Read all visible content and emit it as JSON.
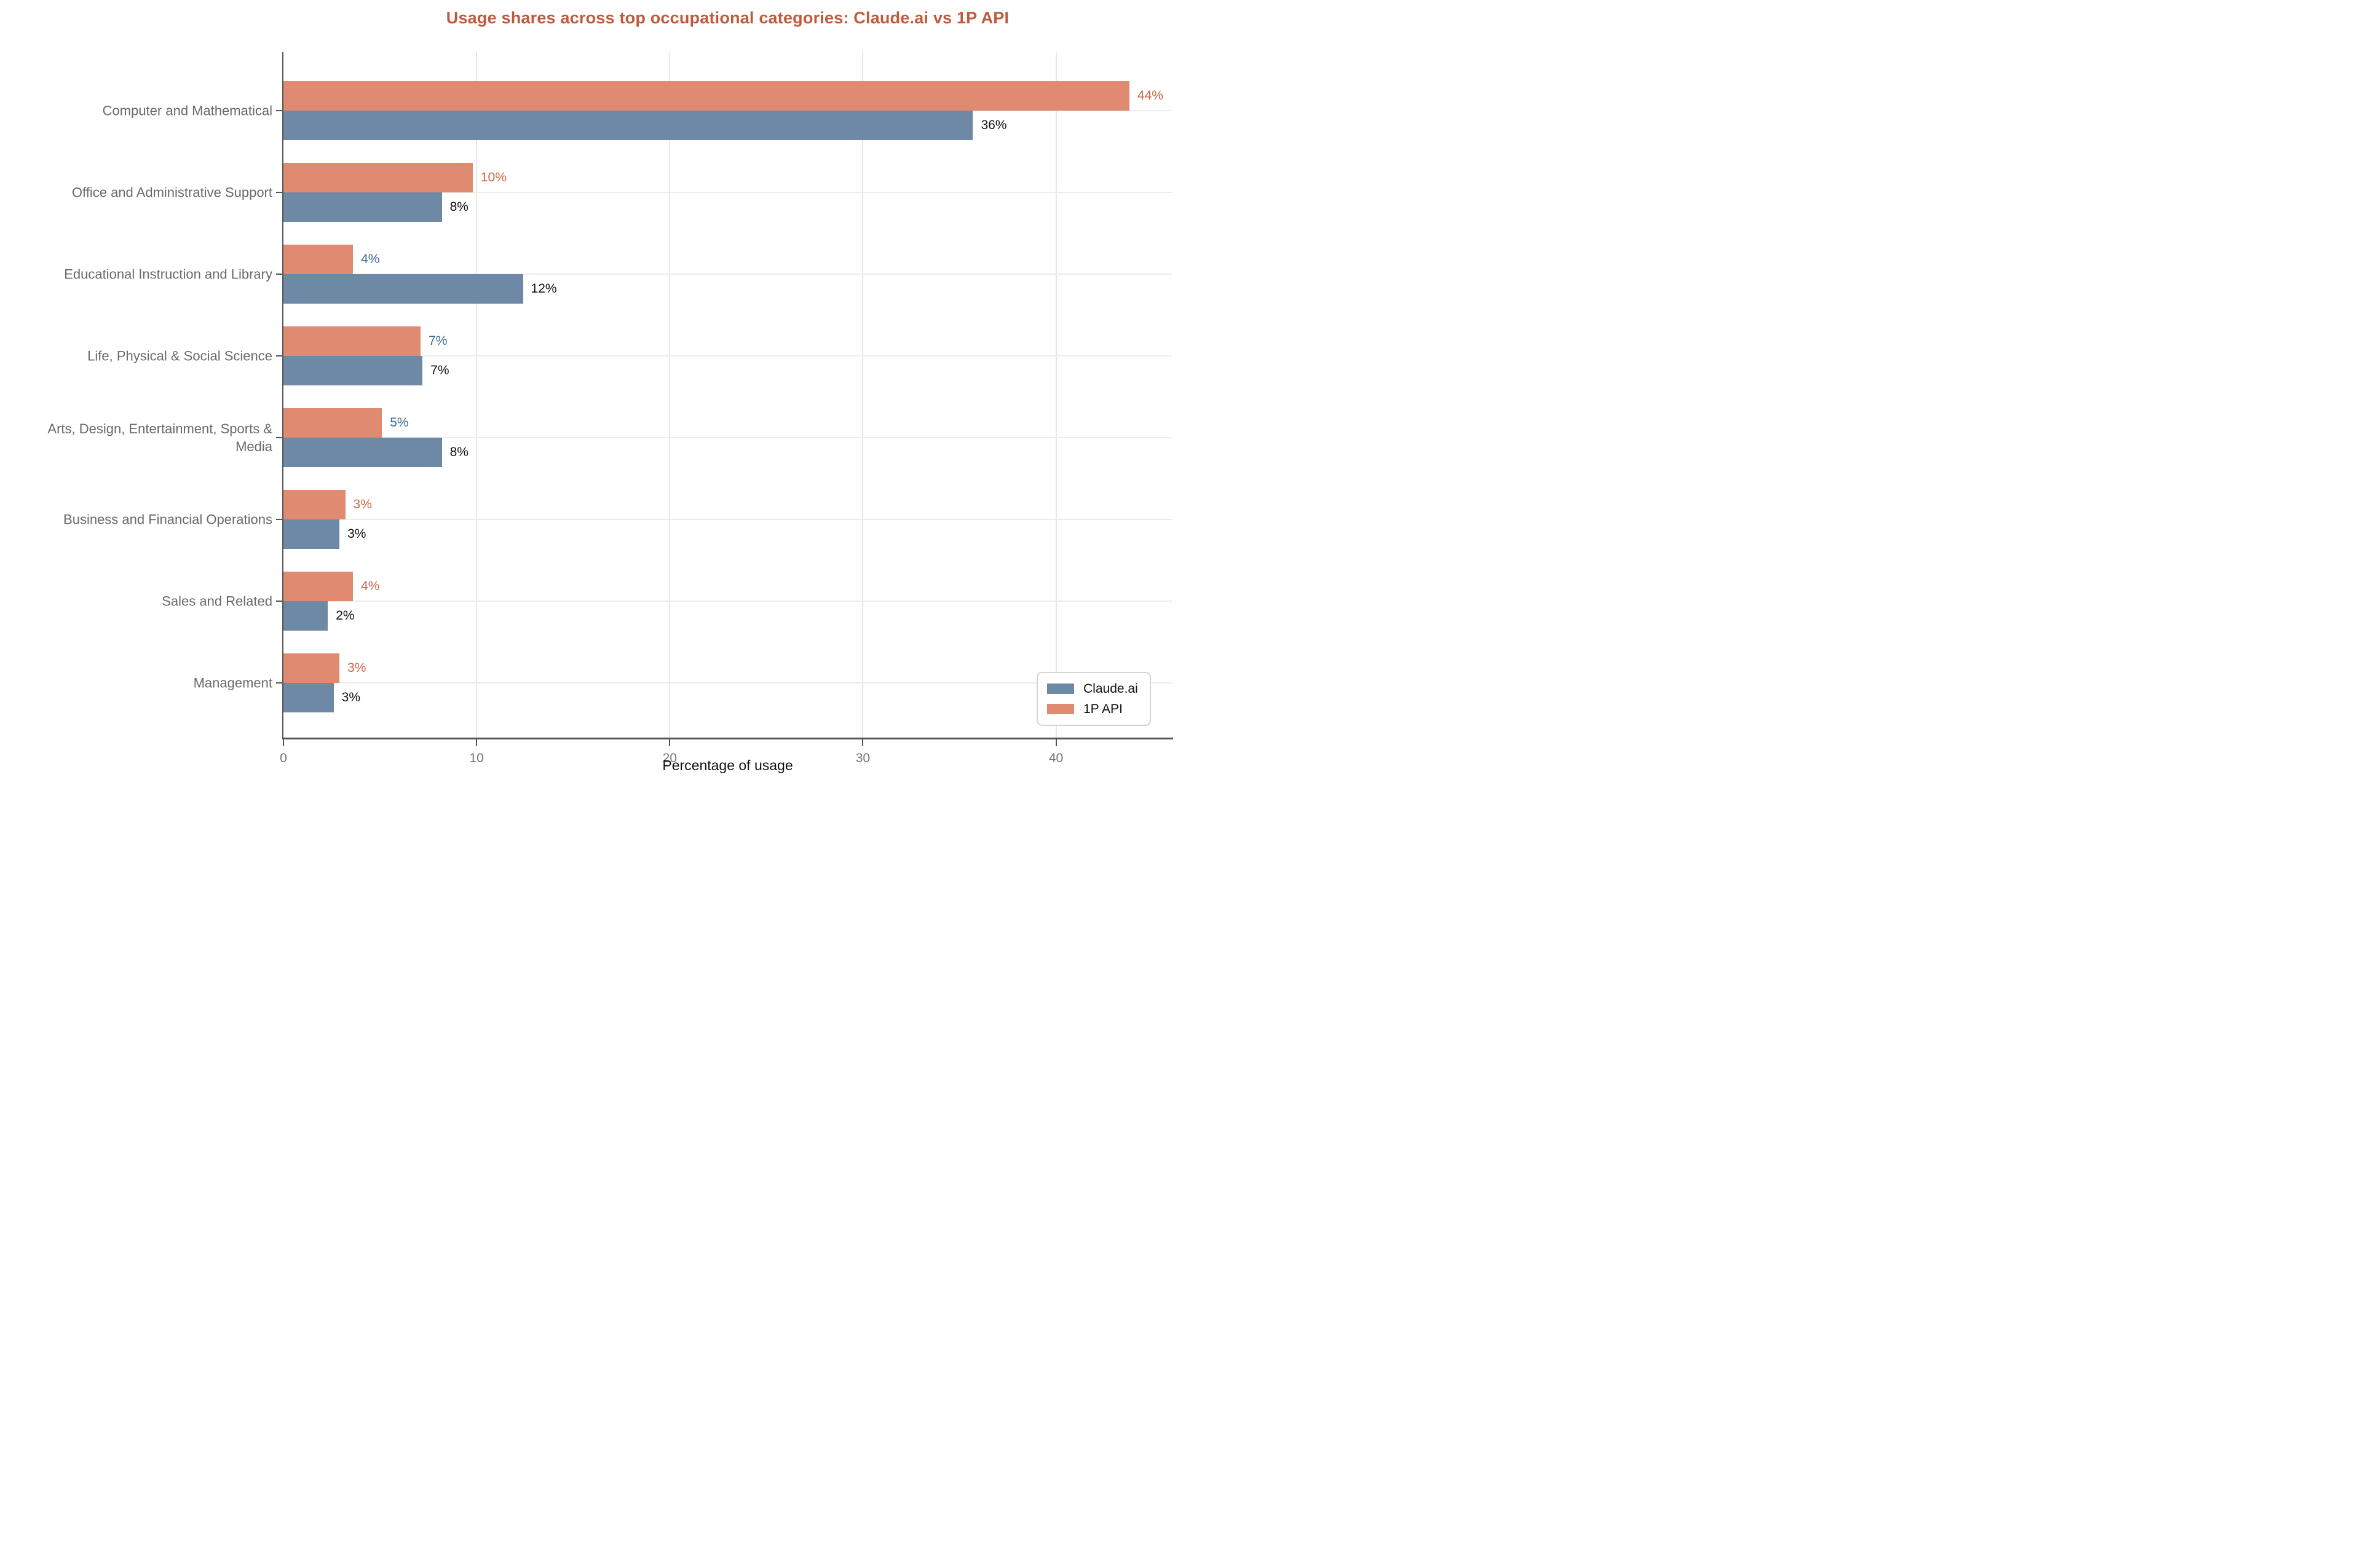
{
  "chart_data": {
    "type": "bar",
    "orientation": "horizontal",
    "title": "Usage shares across top occupational categories: Claude.ai vs 1P API",
    "xlabel": "Percentage of usage",
    "x_ticks": [
      0,
      10,
      20,
      30,
      40
    ],
    "xlim": [
      0,
      46
    ],
    "grid": "vertical lines at x ticks, horizontal lines at category centers",
    "legend_position": "lower right",
    "legend": [
      {
        "name": "Claude.ai",
        "color_key": "claude"
      },
      {
        "name": "1P API",
        "color_key": "api"
      }
    ],
    "categories": [
      "Computer and Mathematical",
      "Office and Administrative Support",
      "Educational Instruction and Library",
      "Life, Physical & Social Science",
      "Arts, Design, Entertainment, Sports & Media",
      "Business and Financial Operations",
      "Sales and Related",
      "Management"
    ],
    "series": [
      {
        "name": "Claude.ai",
        "values": [
          36,
          8,
          12,
          7,
          8,
          3,
          2,
          3
        ]
      },
      {
        "name": "1P API",
        "values": [
          44,
          10,
          4,
          7,
          5,
          3,
          4,
          3
        ]
      }
    ],
    "rows": [
      {
        "label_lines": [
          "Computer and Mathematical"
        ],
        "api": {
          "pct": 43.8,
          "label": "44%",
          "label_color": "#C8684C"
        },
        "claude": {
          "pct": 35.7,
          "label": "36%",
          "label_color": "#111111"
        }
      },
      {
        "label_lines": [
          "Office and Administrative Support"
        ],
        "api": {
          "pct": 9.8,
          "label": "10%",
          "label_color": "#C8684C"
        },
        "claude": {
          "pct": 8.2,
          "label": "8%",
          "label_color": "#111111"
        }
      },
      {
        "label_lines": [
          "Educational Instruction and Library"
        ],
        "api": {
          "pct": 3.6,
          "label": "4%",
          "label_color": "#3E6B94"
        },
        "claude": {
          "pct": 12.4,
          "label": "12%",
          "label_color": "#111111"
        }
      },
      {
        "label_lines": [
          "Life, Physical & Social Science"
        ],
        "api": {
          "pct": 7.1,
          "label": "7%",
          "label_color": "#3E6B94"
        },
        "claude": {
          "pct": 7.2,
          "label": "7%",
          "label_color": "#111111"
        }
      },
      {
        "label_lines": [
          "Arts, Design, Entertainment, Sports &",
          "Media"
        ],
        "api": {
          "pct": 5.1,
          "label": "5%",
          "label_color": "#3E6B94"
        },
        "claude": {
          "pct": 8.2,
          "label": "8%",
          "label_color": "#111111"
        }
      },
      {
        "label_lines": [
          "Business and Financial Operations"
        ],
        "api": {
          "pct": 3.2,
          "label": "3%",
          "label_color": "#C8684C"
        },
        "claude": {
          "pct": 2.9,
          "label": "3%",
          "label_color": "#111111"
        }
      },
      {
        "label_lines": [
          "Sales and Related"
        ],
        "api": {
          "pct": 3.6,
          "label": "4%",
          "label_color": "#C8684C"
        },
        "claude": {
          "pct": 2.3,
          "label": "2%",
          "label_color": "#111111"
        }
      },
      {
        "label_lines": [
          "Management"
        ],
        "api": {
          "pct": 2.9,
          "label": "3%",
          "label_color": "#C8684C"
        },
        "claude": {
          "pct": 2.6,
          "label": "3%",
          "label_color": "#111111"
        }
      }
    ],
    "colors": {
      "claude": "#6D89A6",
      "api": "#E08B71",
      "title": "#BE5A3D",
      "category_text": "#696969",
      "tick_text": "#757575",
      "axis": "#555555",
      "grid": "#E7E7E7"
    }
  }
}
